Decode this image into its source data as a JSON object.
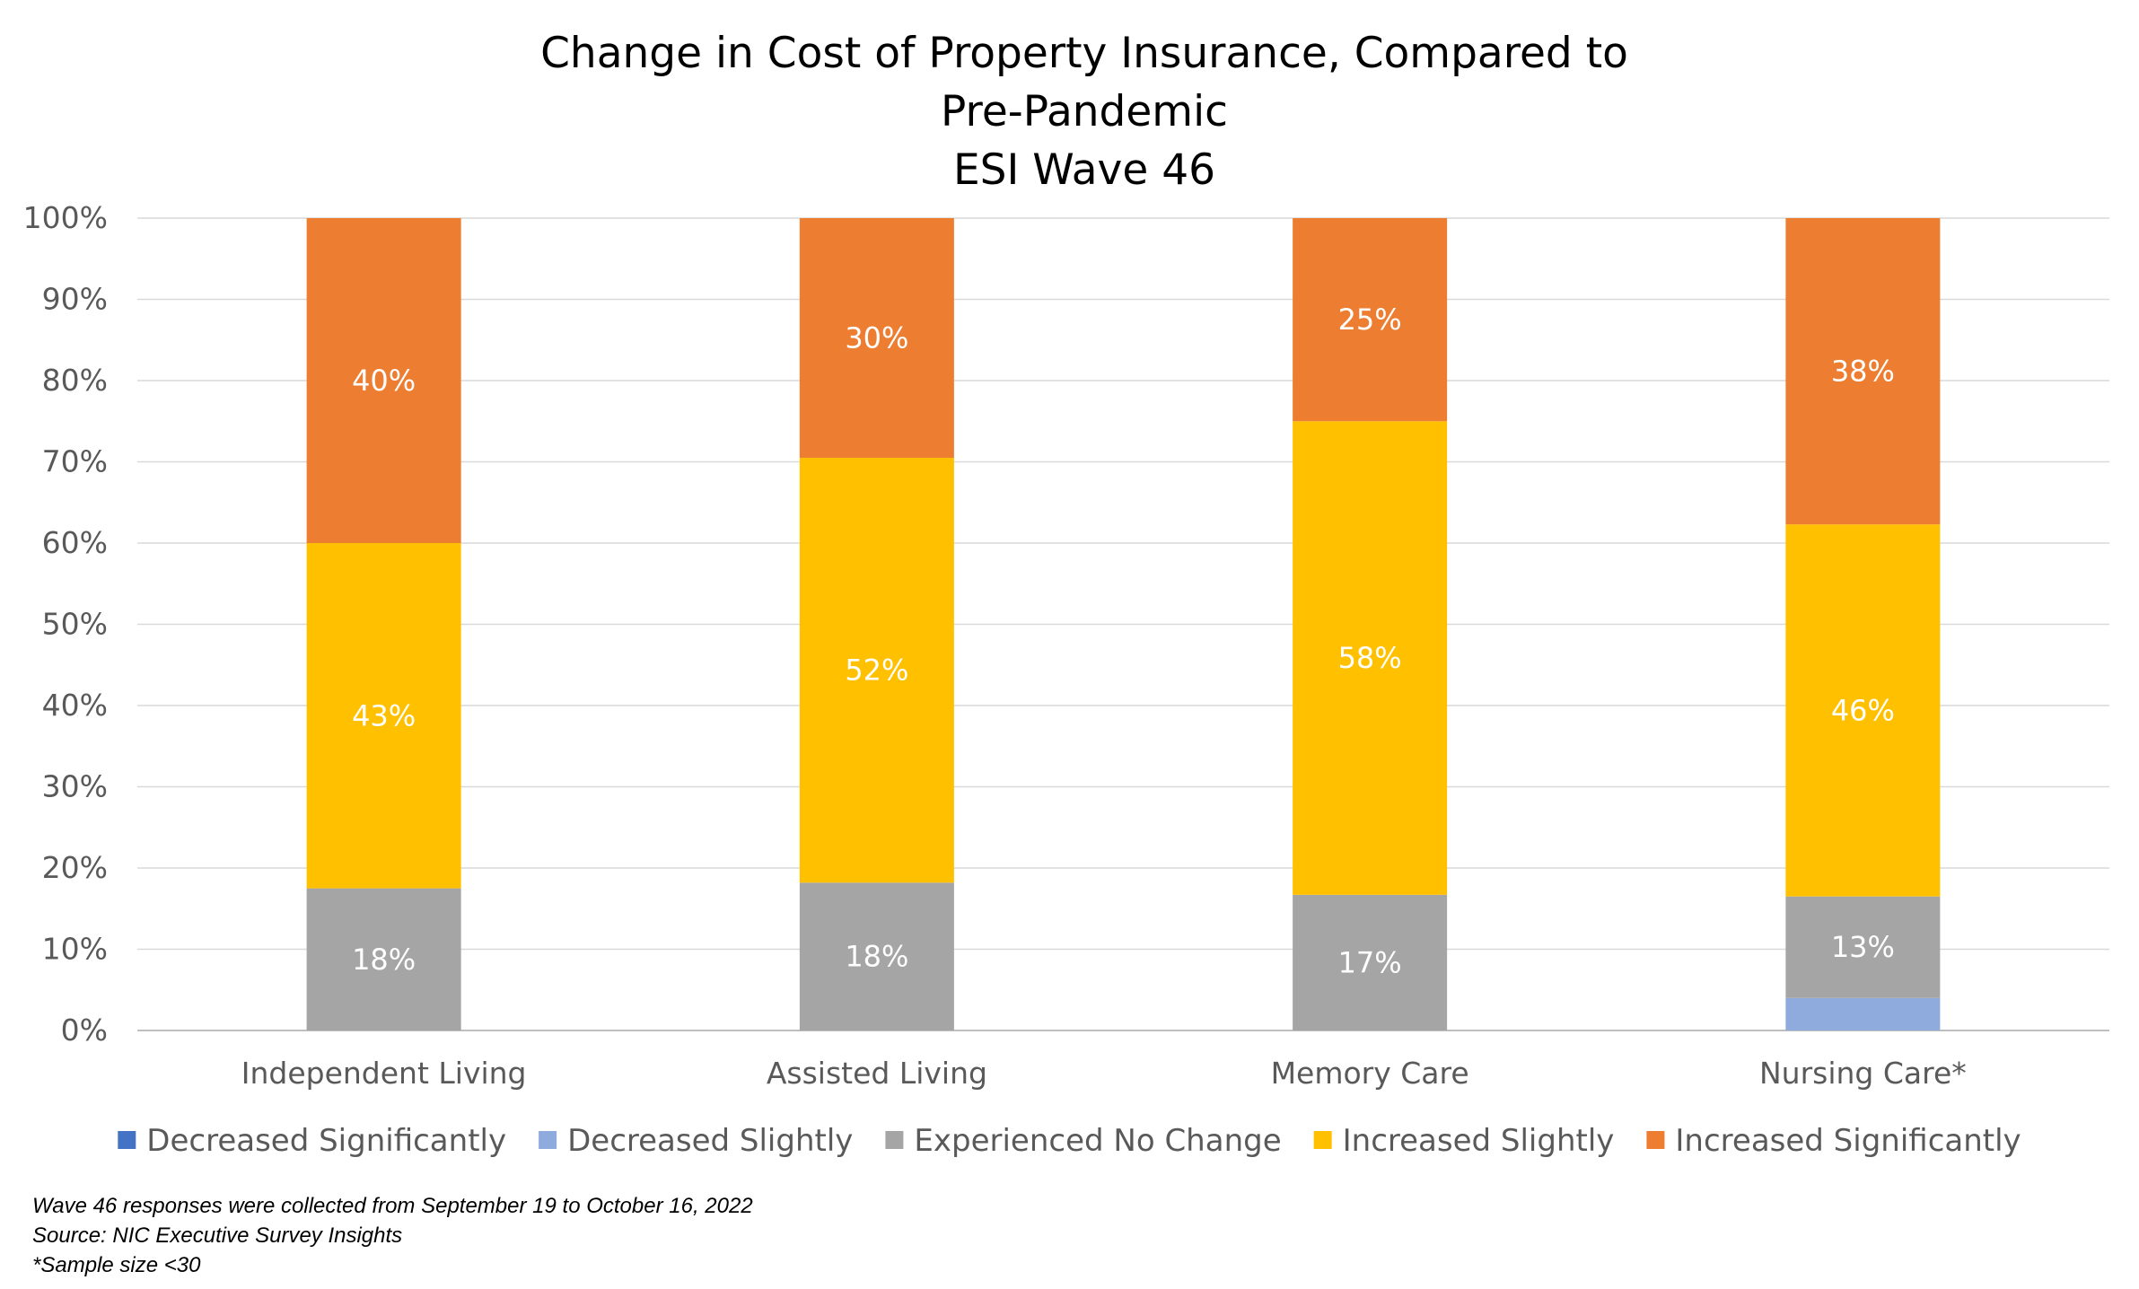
{
  "chart_data": {
    "type": "bar",
    "stacked": true,
    "title": "Change in Cost of Property Insurance, Compared to Pre-Pandemic ESI Wave 46",
    "title_lines": [
      "Change in Cost of Property Insurance, Compared to",
      "Pre-Pandemic",
      "ESI Wave 46"
    ],
    "categories": [
      "Independent Living",
      "Assisted Living",
      "Memory Care",
      "Nursing Care*"
    ],
    "yticks": [
      "0%",
      "10%",
      "20%",
      "30%",
      "40%",
      "50%",
      "60%",
      "70%",
      "80%",
      "90%",
      "100%"
    ],
    "ylim": [
      0,
      100
    ],
    "xlabel": "",
    "ylabel": "",
    "grid": true,
    "legend_position": "bottom",
    "series": [
      {
        "name": "Decreased Significantly",
        "color": "#4472C4",
        "values": [
          0,
          0,
          0,
          0
        ],
        "labels": [
          "",
          "",
          "",
          ""
        ]
      },
      {
        "name": "Decreased Slightly",
        "color": "#8FAADC",
        "values": [
          0,
          0,
          0,
          4
        ],
        "labels": [
          "",
          "",
          "",
          ""
        ]
      },
      {
        "name": "Experienced No Change",
        "color": "#A5A5A5",
        "values": [
          17.5,
          18.2,
          16.7,
          12.5
        ],
        "labels": [
          "18%",
          "18%",
          "17%",
          "13%"
        ]
      },
      {
        "name": "Increased Slightly",
        "color": "#FFC000",
        "values": [
          42.5,
          52.3,
          58.3,
          45.8
        ],
        "labels": [
          "43%",
          "52%",
          "58%",
          "46%"
        ]
      },
      {
        "name": "Increased Significantly",
        "color": "#ED7D31",
        "values": [
          40,
          29.5,
          25,
          37.7
        ],
        "labels": [
          "40%",
          "30%",
          "25%",
          "38%"
        ]
      }
    ]
  },
  "notes": [
    "Wave 46 responses were collected from September 19 to October 16, 2022",
    "Source: NIC Executive Survey Insights",
    "*Sample size <30"
  ]
}
